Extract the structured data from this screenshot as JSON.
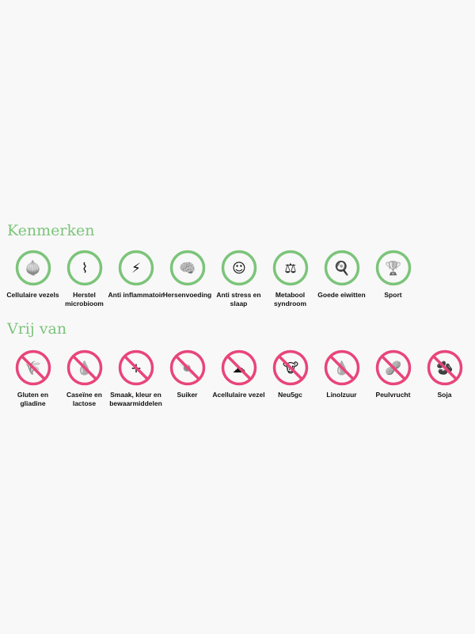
{
  "colors": {
    "accent_green": "#7cc47a",
    "accent_pink": "#e8457a"
  },
  "kenmerken": {
    "title": "Kenmerken",
    "items": [
      {
        "label": "Cellulaire vezels",
        "icon": "onion-icon",
        "glyph": "🧅"
      },
      {
        "label": "Herstel microbioom",
        "icon": "intestine-icon",
        "glyph": "⌇"
      },
      {
        "label": "Anti inflammatoir",
        "icon": "lightning-icon",
        "glyph": "⚡"
      },
      {
        "label": "Hersenvoeding",
        "icon": "brain-icon",
        "glyph": "🧠"
      },
      {
        "label": "Anti stress en slaap",
        "icon": "sleep-face-icon",
        "glyph": "☺"
      },
      {
        "label": "Metabool syndroom",
        "icon": "scale-icon",
        "glyph": "⚖"
      },
      {
        "label": "Goede eiwitten",
        "icon": "egg-icon",
        "glyph": "🍳"
      },
      {
        "label": "Sport",
        "icon": "trophy-icon",
        "glyph": "🏆"
      }
    ]
  },
  "vrij_van": {
    "title": "Vrij van",
    "items": [
      {
        "label": "Gluten en gliadine",
        "icon": "wheat-icon",
        "glyph": "🌾"
      },
      {
        "label": "Caseïne en lactose",
        "icon": "milk-splash-icon",
        "glyph": "💧"
      },
      {
        "label": "Smaak, kleur en bewaarmiddelen",
        "icon": "plus-icon",
        "glyph": "+"
      },
      {
        "label": "Suiker",
        "icon": "candy-icon",
        "glyph": "🍬"
      },
      {
        "label": "Acellulaire vezel",
        "icon": "cauliflower-icon",
        "glyph": "☁"
      },
      {
        "label": "Neu5gc",
        "icon": "cow-icon",
        "glyph": "🐮"
      },
      {
        "label": "Linolzuur",
        "icon": "oil-drop-icon",
        "glyph": "💧"
      },
      {
        "label": "Peulvrucht",
        "icon": "peanut-icon",
        "glyph": "🥜"
      },
      {
        "label": "Soja",
        "icon": "soy-bean-icon",
        "glyph": "🫘"
      }
    ]
  }
}
